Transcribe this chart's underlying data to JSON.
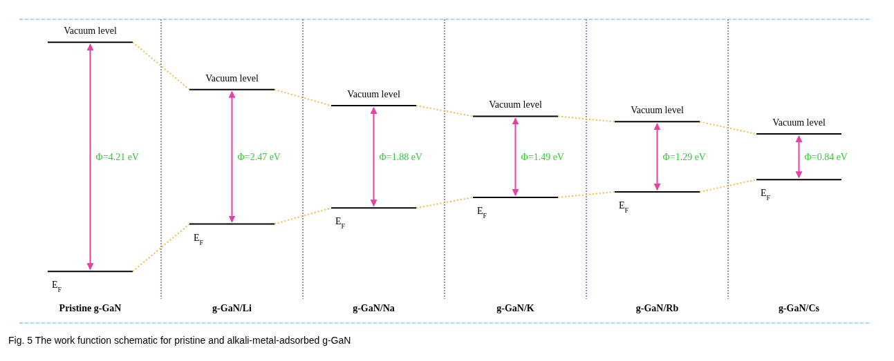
{
  "chart_data": {
    "type": "other",
    "title": "Fig. 5 The work function schematic for pristine and alkali-metal-adsorbed g-GaN",
    "categories": [
      "Pristine g-GaN",
      "g-GaN/Li",
      "g-GaN/Na",
      "g-GaN/K",
      "g-GaN/Rb",
      "g-GaN/Cs"
    ],
    "values": [
      4.21,
      2.47,
      1.88,
      1.49,
      1.29,
      0.84
    ],
    "value_labels": [
      "Φ=4.21 eV",
      "Φ=2.47 eV",
      "Φ=1.88 eV",
      "Φ=1.49 eV",
      "Φ=1.29 eV",
      "Φ=0.84 eV"
    ],
    "color": "#e83fa5",
    "annotations": [
      "Vacuum level",
      "E$_{F}$"
    ]
  }
}
